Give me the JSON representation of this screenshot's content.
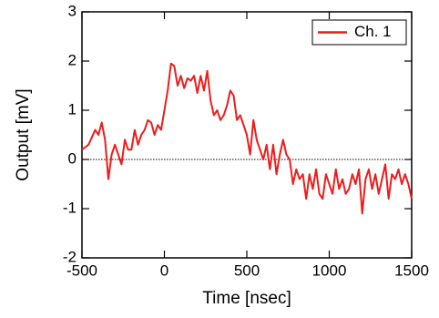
{
  "chart_data": {
    "type": "line",
    "xlabel": "Time [nsec]",
    "ylabel": "Output [mV]",
    "x": [
      -500,
      -480,
      -460,
      -440,
      -420,
      -400,
      -380,
      -360,
      -340,
      -320,
      -300,
      -280,
      -260,
      -240,
      -220,
      -200,
      -180,
      -160,
      -140,
      -120,
      -100,
      -80,
      -60,
      -40,
      -20,
      0,
      20,
      40,
      60,
      80,
      100,
      120,
      140,
      160,
      180,
      200,
      220,
      240,
      260,
      280,
      300,
      320,
      340,
      360,
      380,
      400,
      420,
      440,
      460,
      480,
      500,
      520,
      540,
      560,
      580,
      600,
      620,
      640,
      660,
      680,
      700,
      720,
      740,
      760,
      780,
      800,
      820,
      840,
      860,
      880,
      900,
      920,
      940,
      960,
      980,
      1000,
      1020,
      1040,
      1060,
      1080,
      1100,
      1120,
      1140,
      1160,
      1180,
      1200,
      1220,
      1240,
      1260,
      1280,
      1300,
      1320,
      1340,
      1360,
      1380,
      1400,
      1420,
      1440,
      1460,
      1480,
      1500
    ],
    "series": [
      {
        "name": "Ch. 1",
        "color": "#ee1c1c",
        "values": [
          0.2,
          0.25,
          0.3,
          0.45,
          0.6,
          0.5,
          0.75,
          0.4,
          -0.4,
          0.1,
          0.3,
          0.1,
          -0.1,
          0.4,
          0.2,
          0.2,
          0.6,
          0.3,
          0.5,
          0.6,
          0.8,
          0.75,
          0.5,
          0.7,
          0.6,
          1.0,
          1.4,
          1.95,
          1.9,
          1.5,
          1.7,
          1.45,
          1.65,
          1.6,
          1.7,
          1.35,
          1.7,
          1.4,
          1.8,
          1.2,
          0.9,
          1.0,
          0.8,
          0.9,
          1.1,
          1.4,
          1.3,
          0.8,
          0.9,
          0.7,
          0.5,
          0.1,
          0.8,
          0.4,
          0.2,
          0.0,
          0.3,
          -0.2,
          0.3,
          -0.3,
          0.1,
          0.4,
          0.1,
          0.0,
          -0.5,
          -0.2,
          -0.4,
          -0.3,
          -0.8,
          -0.3,
          -0.6,
          -0.2,
          -0.7,
          -0.8,
          -0.3,
          -0.5,
          -0.7,
          -0.2,
          -0.6,
          -0.4,
          -0.7,
          -0.6,
          -0.3,
          -0.5,
          -0.2,
          -1.1,
          -0.4,
          -0.2,
          -0.6,
          -0.3,
          -0.7,
          -0.4,
          -0.1,
          -0.8,
          -0.3,
          -0.4,
          -0.2,
          -0.5,
          -0.3,
          -0.5,
          -0.8
        ]
      }
    ],
    "xlim": [
      -500,
      1500
    ],
    "xticks": [
      -500,
      0,
      500,
      1000,
      1500
    ],
    "ylim": [
      -2,
      3
    ],
    "yticks": [
      -2,
      -1,
      0,
      1,
      2,
      3
    ],
    "reference_line": 0,
    "legend": "upper right"
  }
}
